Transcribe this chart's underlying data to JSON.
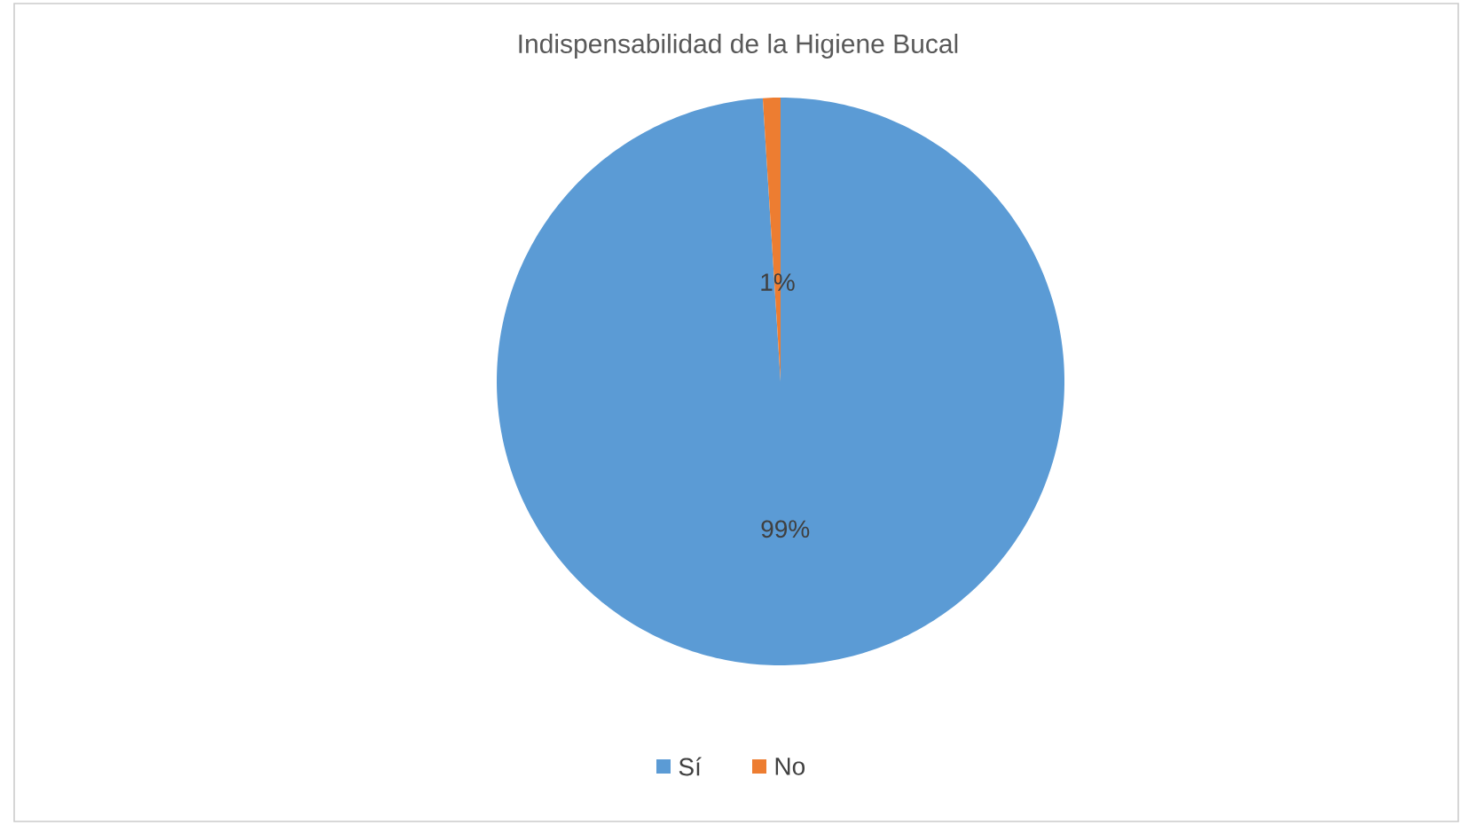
{
  "chart_data": {
    "type": "pie",
    "title": "Indispensabilidad de la Higiene Bucal",
    "categories": [
      "Sí",
      "No"
    ],
    "values": [
      99,
      1
    ],
    "value_labels": [
      "99%",
      "1%"
    ],
    "colors": [
      "#5b9bd5",
      "#ed7d31"
    ],
    "legend": "bottom"
  }
}
